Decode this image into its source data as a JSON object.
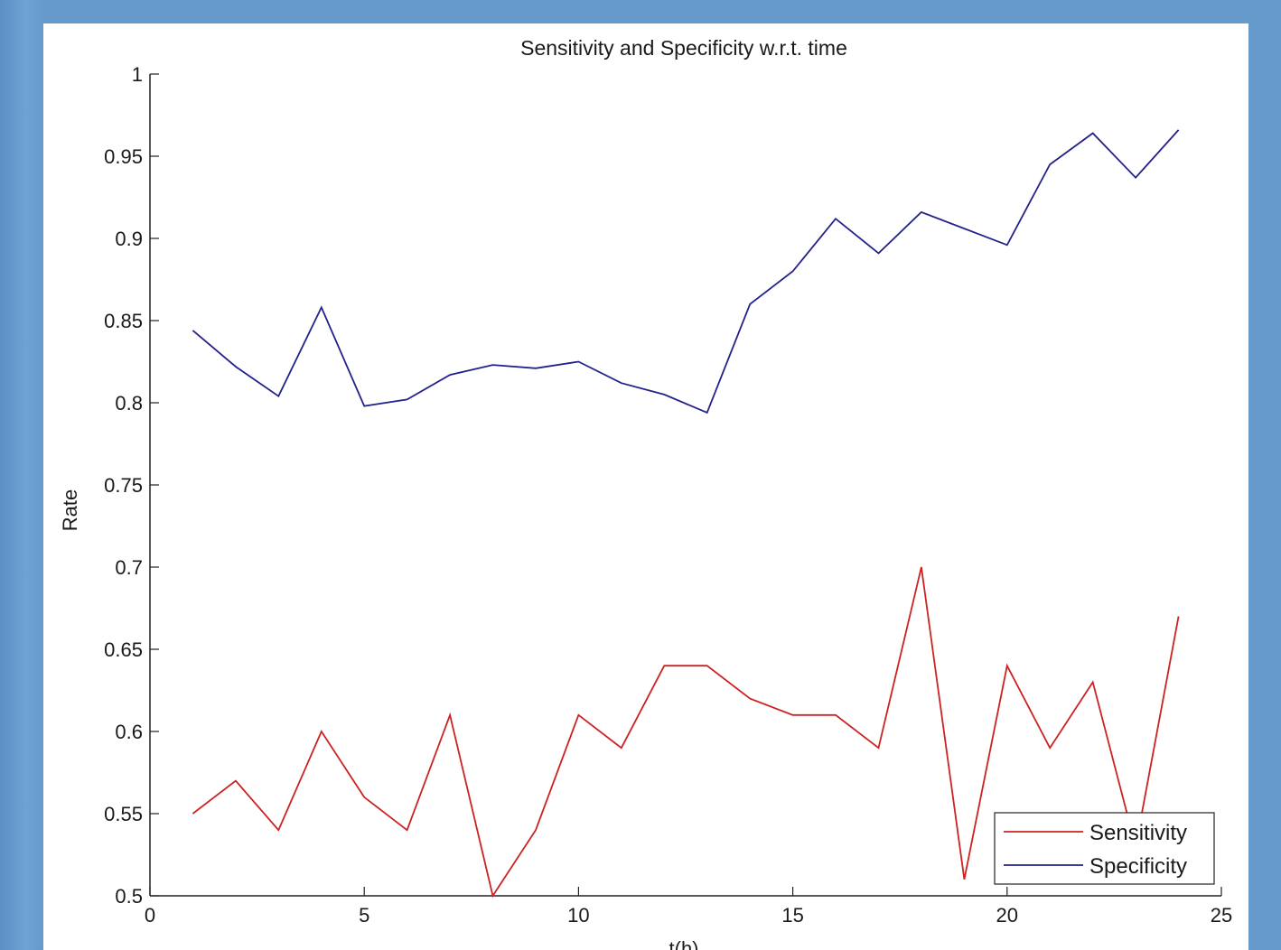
{
  "chart_data": {
    "type": "line",
    "title": "Sensitivity and Specificity w.r.t. time",
    "xlabel": "t(h)",
    "ylabel": "Rate",
    "xlim": [
      0,
      25
    ],
    "ylim": [
      0.5,
      1
    ],
    "xticks": [
      0,
      5,
      10,
      15,
      20,
      25
    ],
    "yticks": [
      0.5,
      0.55,
      0.6,
      0.65,
      0.7,
      0.75,
      0.8,
      0.85,
      0.9,
      0.95,
      1
    ],
    "grid": false,
    "legend_position": "bottom-right",
    "x": [
      1,
      2,
      3,
      4,
      5,
      6,
      7,
      8,
      9,
      10,
      11,
      12,
      13,
      14,
      15,
      16,
      17,
      18,
      19,
      20,
      21,
      22,
      23,
      24
    ],
    "series": [
      {
        "name": "Sensitivity",
        "color": "#cc2222",
        "values": [
          0.55,
          0.57,
          0.54,
          0.6,
          0.56,
          0.54,
          0.61,
          0.5,
          0.54,
          0.61,
          0.59,
          0.64,
          0.64,
          0.62,
          0.61,
          0.61,
          0.59,
          0.7,
          0.51,
          0.64,
          0.59,
          0.63,
          0.53,
          0.67
        ]
      },
      {
        "name": "Specificity",
        "color": "#22228a",
        "values": [
          0.844,
          0.822,
          0.804,
          0.858,
          0.798,
          0.802,
          0.817,
          0.823,
          0.821,
          0.825,
          0.812,
          0.805,
          0.794,
          0.86,
          0.88,
          0.912,
          0.891,
          0.916,
          0.906,
          0.896,
          0.945,
          0.964,
          0.937,
          0.966
        ]
      }
    ]
  }
}
